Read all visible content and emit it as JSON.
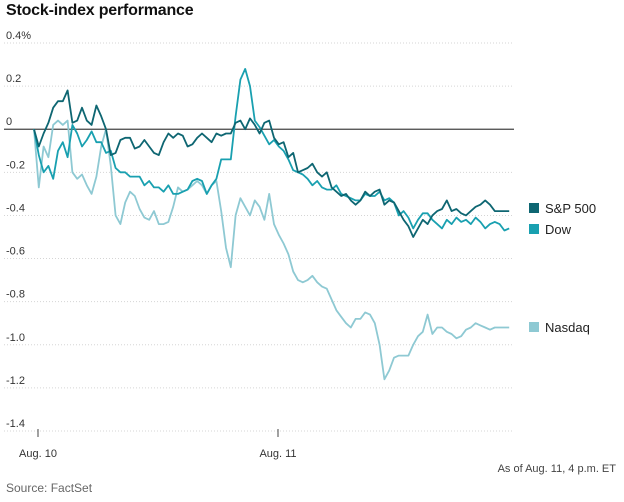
{
  "chart_data": {
    "type": "line",
    "title": "Stock-index performance",
    "ylim": [
      -1.4,
      0.4
    ],
    "y_ticks": [
      0.4,
      0.2,
      0,
      -0.2,
      -0.4,
      -0.6,
      -0.8,
      -1.0,
      -1.2,
      -1.4
    ],
    "y_tick_labels": [
      "0.4%",
      "0.2",
      "0",
      "-0.2",
      "-0.4",
      "-0.6",
      "-0.8",
      "-1.0",
      "-1.2",
      "-1.4"
    ],
    "x_ticks": [
      0,
      1
    ],
    "x_tick_labels": [
      "Aug. 10",
      "Aug. 11"
    ],
    "xlim": [
      0,
      2
    ],
    "grid": "horizontal",
    "legend": "right",
    "note": "As of Aug. 11, 4 p.m. ET",
    "source": "Source: FactSet",
    "series": [
      {
        "name": "S&P 500",
        "color": "#0e6672",
        "x": [
          0,
          0.02,
          0.04,
          0.06,
          0.08,
          0.1,
          0.12,
          0.14,
          0.16,
          0.18,
          0.2,
          0.22,
          0.24,
          0.26,
          0.28,
          0.3,
          0.32,
          0.34,
          0.36,
          0.38,
          0.4,
          0.42,
          0.44,
          0.46,
          0.48,
          0.5,
          0.52,
          0.54,
          0.56,
          0.58,
          0.6,
          0.62,
          0.64,
          0.66,
          0.68,
          0.7,
          0.72,
          0.74,
          0.76,
          0.78,
          0.8,
          0.82,
          0.84,
          0.86,
          0.88,
          0.9,
          0.92,
          0.94,
          0.96,
          0.98,
          1.0,
          1.02,
          1.04,
          1.06,
          1.08,
          1.1,
          1.12,
          1.14,
          1.16,
          1.18,
          1.2,
          1.22,
          1.24,
          1.26,
          1.28,
          1.3,
          1.32,
          1.34,
          1.36,
          1.38,
          1.4,
          1.42,
          1.44,
          1.46,
          1.48,
          1.5,
          1.52,
          1.54,
          1.56,
          1.58,
          1.6,
          1.62,
          1.64,
          1.66,
          1.68,
          1.7,
          1.72,
          1.74,
          1.76,
          1.78,
          1.8,
          1.82,
          1.84,
          1.86,
          1.88,
          1.9,
          1.92,
          1.94,
          1.96,
          1.98
        ],
        "values": [
          0,
          -0.08,
          -0.02,
          0.03,
          0.1,
          0.13,
          0.13,
          0.18,
          0.03,
          0.04,
          0.1,
          0.04,
          0.02,
          0.11,
          0.06,
          0,
          -0.12,
          -0.11,
          -0.05,
          -0.04,
          -0.04,
          -0.09,
          -0.08,
          -0.05,
          -0.08,
          -0.11,
          -0.12,
          -0.06,
          -0.02,
          -0.04,
          -0.02,
          -0.03,
          -0.08,
          -0.07,
          -0.04,
          -0.02,
          -0.04,
          -0.06,
          -0.02,
          -0.03,
          -0.02,
          -0.02,
          0.03,
          0.04,
          0.0,
          0.05,
          0.02,
          -0.02,
          0.03,
          0.04,
          -0.04,
          -0.07,
          -0.06,
          -0.13,
          -0.11,
          -0.2,
          -0.19,
          -0.18,
          -0.16,
          -0.2,
          -0.22,
          -0.2,
          -0.27,
          -0.29,
          -0.31,
          -0.3,
          -0.33,
          -0.35,
          -0.33,
          -0.29,
          -0.31,
          -0.29,
          -0.28,
          -0.35,
          -0.33,
          -0.34,
          -0.38,
          -0.42,
          -0.45,
          -0.5,
          -0.46,
          -0.42,
          -0.44,
          -0.4,
          -0.38,
          -0.37,
          -0.33,
          -0.38,
          -0.37,
          -0.39,
          -0.4,
          -0.38,
          -0.36,
          -0.35,
          -0.33,
          -0.35,
          -0.38,
          -0.38,
          -0.38,
          -0.38
        ]
      },
      {
        "name": "Dow",
        "color": "#19a0b0",
        "x": [
          0,
          0.02,
          0.04,
          0.06,
          0.08,
          0.1,
          0.12,
          0.14,
          0.16,
          0.18,
          0.2,
          0.22,
          0.24,
          0.26,
          0.28,
          0.3,
          0.32,
          0.34,
          0.36,
          0.38,
          0.4,
          0.42,
          0.44,
          0.46,
          0.48,
          0.5,
          0.52,
          0.54,
          0.56,
          0.58,
          0.6,
          0.62,
          0.64,
          0.66,
          0.68,
          0.7,
          0.72,
          0.74,
          0.76,
          0.78,
          0.8,
          0.82,
          0.84,
          0.86,
          0.88,
          0.9,
          0.92,
          0.94,
          0.96,
          0.98,
          1.0,
          1.02,
          1.04,
          1.06,
          1.08,
          1.1,
          1.12,
          1.14,
          1.16,
          1.18,
          1.2,
          1.22,
          1.24,
          1.26,
          1.28,
          1.3,
          1.32,
          1.34,
          1.36,
          1.38,
          1.4,
          1.42,
          1.44,
          1.46,
          1.48,
          1.5,
          1.52,
          1.54,
          1.56,
          1.58,
          1.6,
          1.62,
          1.64,
          1.66,
          1.68,
          1.7,
          1.72,
          1.74,
          1.76,
          1.78,
          1.8,
          1.82,
          1.84,
          1.86,
          1.88,
          1.9,
          1.92,
          1.94,
          1.96,
          1.98
        ],
        "values": [
          0,
          -0.12,
          -0.2,
          -0.17,
          -0.23,
          -0.1,
          -0.06,
          -0.13,
          0.02,
          -0.02,
          -0.08,
          -0.05,
          -0.01,
          -0.06,
          -0.06,
          -0.11,
          -0.1,
          -0.18,
          -0.2,
          -0.2,
          -0.22,
          -0.22,
          -0.22,
          -0.26,
          -0.24,
          -0.27,
          -0.27,
          -0.29,
          -0.26,
          -0.3,
          -0.3,
          -0.29,
          -0.28,
          -0.24,
          -0.23,
          -0.24,
          -0.3,
          -0.26,
          -0.23,
          -0.14,
          -0.14,
          -0.14,
          0.06,
          0.23,
          0.28,
          0.2,
          0.04,
          0.01,
          -0.03,
          -0.07,
          -0.05,
          -0.08,
          -0.1,
          -0.14,
          -0.19,
          -0.2,
          -0.21,
          -0.23,
          -0.26,
          -0.24,
          -0.27,
          -0.28,
          -0.28,
          -0.26,
          -0.3,
          -0.31,
          -0.32,
          -0.33,
          -0.33,
          -0.3,
          -0.31,
          -0.31,
          -0.29,
          -0.33,
          -0.32,
          -0.34,
          -0.4,
          -0.38,
          -0.41,
          -0.46,
          -0.42,
          -0.39,
          -0.39,
          -0.42,
          -0.44,
          -0.46,
          -0.42,
          -0.44,
          -0.41,
          -0.43,
          -0.42,
          -0.44,
          -0.41,
          -0.43,
          -0.46,
          -0.44,
          -0.43,
          -0.44,
          -0.47,
          -0.46
        ]
      },
      {
        "name": "Nasdaq",
        "color": "#8ec9d3",
        "x": [
          0,
          0.02,
          0.04,
          0.06,
          0.08,
          0.1,
          0.12,
          0.14,
          0.16,
          0.18,
          0.2,
          0.22,
          0.24,
          0.26,
          0.28,
          0.3,
          0.32,
          0.34,
          0.36,
          0.38,
          0.4,
          0.42,
          0.44,
          0.46,
          0.48,
          0.5,
          0.52,
          0.54,
          0.56,
          0.58,
          0.6,
          0.62,
          0.64,
          0.66,
          0.68,
          0.7,
          0.72,
          0.74,
          0.76,
          0.78,
          0.8,
          0.82,
          0.84,
          0.86,
          0.88,
          0.9,
          0.92,
          0.94,
          0.96,
          0.98,
          1.0,
          1.02,
          1.04,
          1.06,
          1.08,
          1.1,
          1.12,
          1.14,
          1.16,
          1.18,
          1.2,
          1.22,
          1.24,
          1.26,
          1.28,
          1.3,
          1.32,
          1.34,
          1.36,
          1.38,
          1.4,
          1.42,
          1.44,
          1.46,
          1.48,
          1.5,
          1.52,
          1.54,
          1.56,
          1.58,
          1.6,
          1.62,
          1.64,
          1.66,
          1.68,
          1.7,
          1.72,
          1.74,
          1.76,
          1.78,
          1.8,
          1.82,
          1.84,
          1.86,
          1.88,
          1.9,
          1.92,
          1.94,
          1.96,
          1.98
        ],
        "values": [
          0,
          -0.27,
          -0.08,
          -0.13,
          0.02,
          0.04,
          0.02,
          0.04,
          -0.2,
          -0.23,
          -0.21,
          -0.26,
          -0.3,
          -0.22,
          -0.08,
          0.0,
          -0.17,
          -0.4,
          -0.44,
          -0.34,
          -0.29,
          -0.31,
          -0.37,
          -0.41,
          -0.42,
          -0.38,
          -0.44,
          -0.44,
          -0.43,
          -0.36,
          -0.27,
          -0.29,
          -0.28,
          -0.26,
          -0.24,
          -0.26,
          -0.3,
          -0.26,
          -0.24,
          -0.38,
          -0.55,
          -0.64,
          -0.4,
          -0.32,
          -0.36,
          -0.4,
          -0.33,
          -0.36,
          -0.42,
          -0.3,
          -0.44,
          -0.49,
          -0.53,
          -0.58,
          -0.66,
          -0.7,
          -0.71,
          -0.7,
          -0.68,
          -0.71,
          -0.73,
          -0.74,
          -0.79,
          -0.84,
          -0.87,
          -0.9,
          -0.92,
          -0.88,
          -0.88,
          -0.85,
          -0.86,
          -0.9,
          -1.0,
          -1.16,
          -1.12,
          -1.06,
          -1.05,
          -1.05,
          -1.05,
          -1.0,
          -0.96,
          -0.94,
          -0.86,
          -0.95,
          -0.92,
          -0.92,
          -0.94,
          -0.95,
          -0.97,
          -0.96,
          -0.93,
          -0.92,
          -0.9,
          -0.91,
          -0.92,
          -0.93,
          -0.92,
          -0.92,
          -0.92,
          -0.92
        ]
      }
    ]
  }
}
